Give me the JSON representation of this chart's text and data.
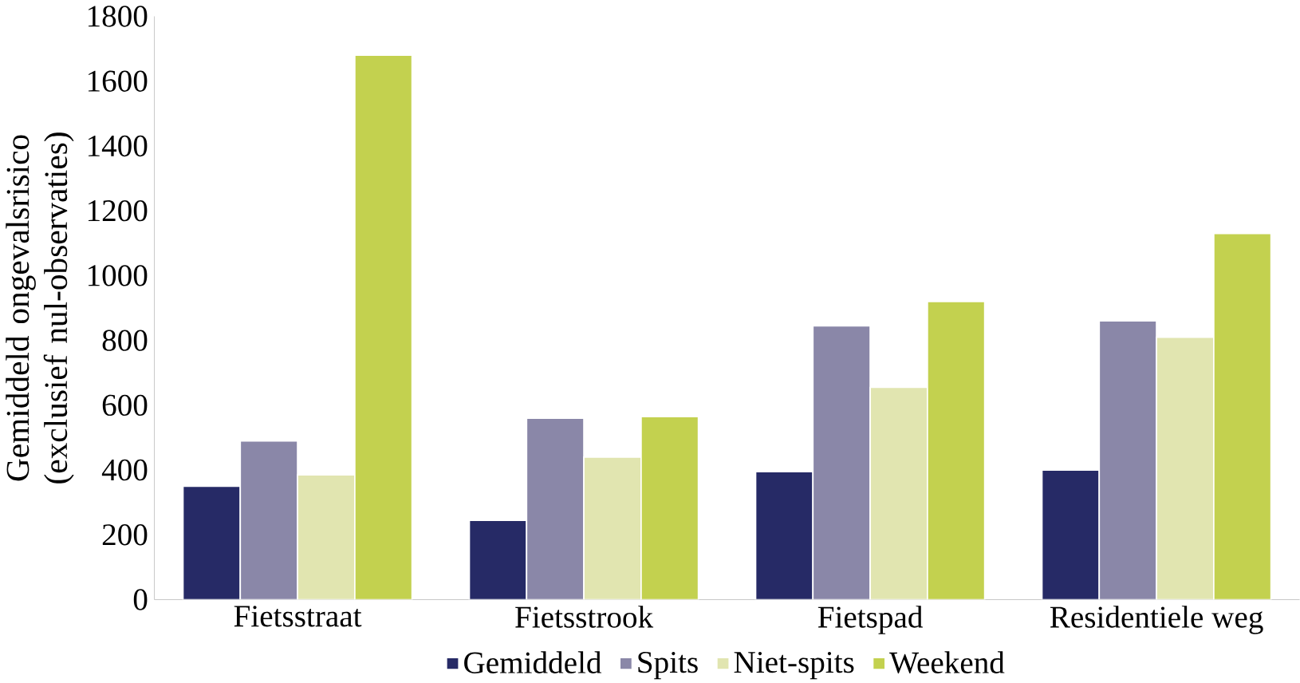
{
  "chart_data": {
    "type": "bar",
    "ylabel": "Gemiddeld ongevalsrisico\n(exclusief nul-observaties)",
    "categories": [
      "Fietsstraat",
      "Fietsstrook",
      "Fietspad",
      "Residentiele weg"
    ],
    "series": [
      {
        "name": "Gemiddeld",
        "color": "#262a66",
        "values": [
          350,
          245,
          395,
          400
        ]
      },
      {
        "name": "Spits",
        "color": "#8a87a8",
        "values": [
          490,
          560,
          845,
          860
        ]
      },
      {
        "name": "Niet-spits",
        "color": "#e1e5b0",
        "values": [
          385,
          440,
          655,
          810
        ]
      },
      {
        "name": "Weekend",
        "color": "#c3d14f",
        "values": [
          1680,
          565,
          920,
          1130
        ]
      }
    ],
    "ylim": [
      0,
      1800
    ],
    "yticks": [
      0,
      200,
      400,
      600,
      800,
      1000,
      1200,
      1400,
      1600,
      1800
    ],
    "grid": false,
    "legend": "bottom"
  }
}
